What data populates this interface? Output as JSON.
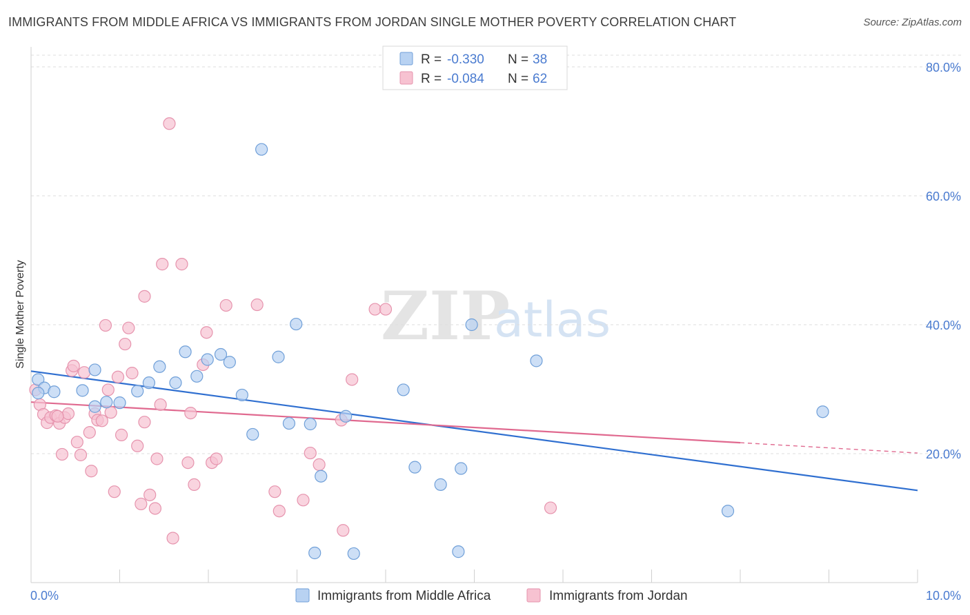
{
  "header": {
    "title": "IMMIGRANTS FROM MIDDLE AFRICA VS IMMIGRANTS FROM JORDAN SINGLE MOTHER POVERTY CORRELATION CHART",
    "source": "Source: ZipAtlas.com"
  },
  "watermark": {
    "zip": "ZIP",
    "atlas": "atlas"
  },
  "legend_box": [
    {
      "r_label": "R =",
      "r_value": "-0.330",
      "n_label": "N =",
      "n_value": "38"
    },
    {
      "r_label": "R =",
      "r_value": "-0.084",
      "n_label": "N =",
      "n_value": "62"
    }
  ],
  "colors": {
    "blue_fill": "#b8d2f2",
    "blue_stroke": "#6f9fd8",
    "blue_line": "#2f6fd0",
    "pink_fill": "#f7c2d1",
    "pink_stroke": "#e693ad",
    "pink_line": "#e0698f",
    "tick_label": "#4a7bd0",
    "grid": "#dedede"
  },
  "chart_data": {
    "type": "scatter",
    "ylabel": "Single Mother Poverty",
    "xlabel": "",
    "xlim": [
      0,
      10
    ],
    "ylim": [
      0,
      80
    ],
    "x_tick_labels": [
      "0.0%",
      "10.0%"
    ],
    "y_tick_labels": [
      "20.0%",
      "40.0%",
      "60.0%",
      "80.0%"
    ],
    "y_ticks": [
      20,
      40,
      60,
      80
    ],
    "grid": true,
    "legend_position": "top-center",
    "series": [
      {
        "name": "Immigrants from Middle Africa",
        "color": "blue",
        "r": -0.33,
        "n": 38,
        "trend": {
          "x0": 0,
          "y0": 32.8,
          "x1": 10,
          "y1": 14.3
        },
        "points": [
          [
            0.08,
            31.5
          ],
          [
            0.15,
            30.2
          ],
          [
            0.26,
            29.6
          ],
          [
            0.58,
            29.8
          ],
          [
            0.72,
            33.0
          ],
          [
            0.72,
            27.3
          ],
          [
            0.85,
            28.0
          ],
          [
            1.0,
            27.9
          ],
          [
            1.2,
            29.7
          ],
          [
            1.33,
            31.0
          ],
          [
            1.45,
            33.5
          ],
          [
            1.63,
            31.0
          ],
          [
            1.74,
            35.8
          ],
          [
            1.87,
            32.0
          ],
          [
            1.99,
            34.6
          ],
          [
            2.14,
            35.4
          ],
          [
            2.24,
            34.2
          ],
          [
            2.38,
            29.1
          ],
          [
            2.5,
            23.0
          ],
          [
            2.6,
            67.2
          ],
          [
            2.79,
            35.0
          ],
          [
            2.91,
            24.7
          ],
          [
            2.99,
            40.1
          ],
          [
            3.15,
            24.6
          ],
          [
            3.27,
            16.5
          ],
          [
            3.55,
            25.8
          ],
          [
            4.2,
            29.9
          ],
          [
            4.33,
            17.9
          ],
          [
            4.62,
            15.2
          ],
          [
            4.85,
            17.7
          ],
          [
            4.97,
            40.0
          ],
          [
            5.7,
            34.4
          ],
          [
            7.86,
            11.1
          ],
          [
            8.93,
            26.5
          ],
          [
            3.2,
            4.6
          ],
          [
            3.64,
            4.5
          ],
          [
            4.82,
            4.8
          ],
          [
            0.08,
            29.4
          ]
        ]
      },
      {
        "name": "Immigrants from Jordan",
        "color": "pink",
        "r": -0.084,
        "n": 62,
        "trend": {
          "x0": 0,
          "y0": 28.0,
          "x1": 8.0,
          "y1": 21.7
        },
        "trend_dashed_to": {
          "x": 10,
          "y": 20.1
        },
        "points": [
          [
            0.05,
            29.9
          ],
          [
            0.1,
            27.6
          ],
          [
            0.14,
            26.1
          ],
          [
            0.18,
            24.8
          ],
          [
            0.22,
            25.6
          ],
          [
            0.28,
            25.9
          ],
          [
            0.32,
            24.7
          ],
          [
            0.35,
            19.9
          ],
          [
            0.38,
            25.6
          ],
          [
            0.42,
            26.2
          ],
          [
            0.46,
            32.9
          ],
          [
            0.48,
            33.6
          ],
          [
            0.52,
            21.8
          ],
          [
            0.56,
            19.8
          ],
          [
            0.6,
            32.6
          ],
          [
            0.66,
            23.3
          ],
          [
            0.68,
            17.3
          ],
          [
            0.72,
            26.2
          ],
          [
            0.75,
            25.2
          ],
          [
            0.8,
            25.1
          ],
          [
            0.84,
            39.9
          ],
          [
            0.87,
            29.9
          ],
          [
            0.9,
            26.4
          ],
          [
            0.94,
            14.1
          ],
          [
            0.98,
            31.9
          ],
          [
            1.02,
            22.9
          ],
          [
            1.06,
            37.0
          ],
          [
            1.1,
            39.5
          ],
          [
            1.14,
            32.5
          ],
          [
            1.2,
            21.2
          ],
          [
            1.24,
            12.2
          ],
          [
            1.28,
            44.4
          ],
          [
            1.28,
            24.9
          ],
          [
            1.34,
            13.6
          ],
          [
            1.4,
            11.5
          ],
          [
            1.42,
            19.2
          ],
          [
            1.46,
            27.6
          ],
          [
            1.48,
            49.4
          ],
          [
            1.56,
            71.2
          ],
          [
            1.6,
            6.9
          ],
          [
            1.7,
            49.4
          ],
          [
            1.77,
            18.6
          ],
          [
            1.8,
            26.3
          ],
          [
            1.84,
            15.2
          ],
          [
            1.94,
            33.8
          ],
          [
            1.98,
            38.8
          ],
          [
            2.04,
            18.6
          ],
          [
            2.09,
            19.2
          ],
          [
            2.2,
            43.0
          ],
          [
            2.55,
            43.1
          ],
          [
            2.75,
            14.1
          ],
          [
            2.8,
            11.1
          ],
          [
            3.07,
            12.8
          ],
          [
            3.15,
            20.1
          ],
          [
            3.25,
            18.3
          ],
          [
            3.5,
            25.2
          ],
          [
            3.52,
            8.1
          ],
          [
            3.62,
            31.5
          ],
          [
            3.88,
            42.4
          ],
          [
            4.0,
            42.4
          ],
          [
            5.86,
            11.6
          ],
          [
            0.3,
            25.8
          ]
        ]
      }
    ]
  },
  "bottom_legend": [
    {
      "label": "Immigrants from Middle Africa"
    },
    {
      "label": "Immigrants from Jordan"
    }
  ]
}
